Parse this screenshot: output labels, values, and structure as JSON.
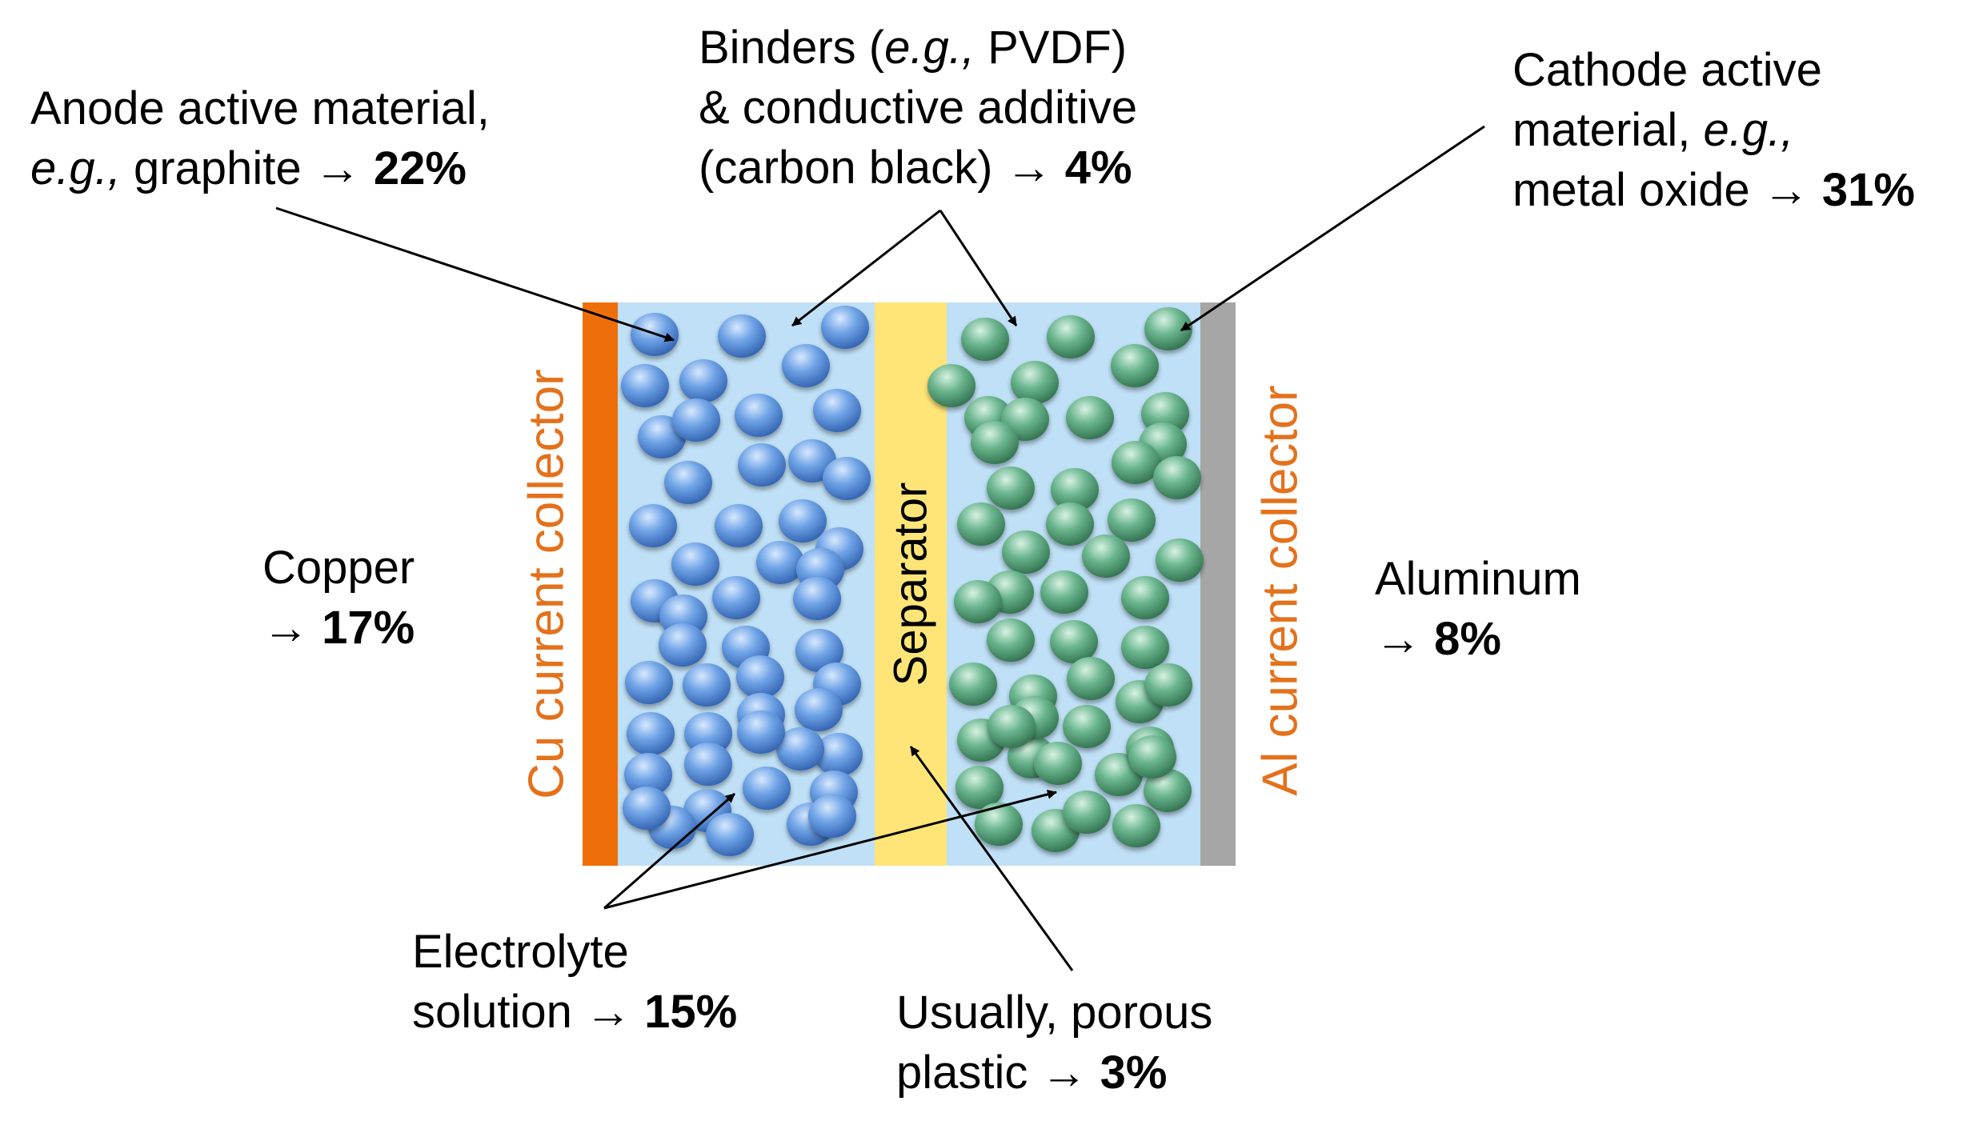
{
  "labels": {
    "anode": {
      "line1": "Anode active material,",
      "line2_italic": "e.g.,",
      "line2_text": " graphite → ",
      "percent": "22%"
    },
    "binders": {
      "line1_a": "Binders (",
      "line1_italic": "e.g.,",
      "line1_b": " PVDF)",
      "line2": "& conductive additive",
      "line3_text": "(carbon black) → ",
      "percent": "4%"
    },
    "cathode": {
      "line1": "Cathode active",
      "line2_text": "material, ",
      "line2_italic": "e.g.,",
      "line3_text": "metal oxide → ",
      "percent": "31%"
    },
    "copper": {
      "line1": "Copper",
      "line2_text": "→ ",
      "percent": "17%"
    },
    "aluminum": {
      "line1": "Aluminum",
      "line2_text": "→ ",
      "percent": "8%"
    },
    "electrolyte": {
      "line1": "Electrolyte",
      "line2_text": "solution → ",
      "percent": "15%"
    },
    "separator_material": {
      "line1": "Usually, porous",
      "line2_text": "plastic → ",
      "percent": "3%"
    },
    "cu_collector": "Cu current collector",
    "al_collector": "Al current collector",
    "separator": "Separator"
  },
  "colors": {
    "copper_bar": "#ee6f0a",
    "aluminum_bar": "#a6a6a6",
    "electrolyte_fill": "#bfe0f6",
    "separator_fill": "#ffe577",
    "collector_text": "#e4711b",
    "anode_particle": "#4f86d4",
    "cathode_particle": "#4f9a72"
  }
}
